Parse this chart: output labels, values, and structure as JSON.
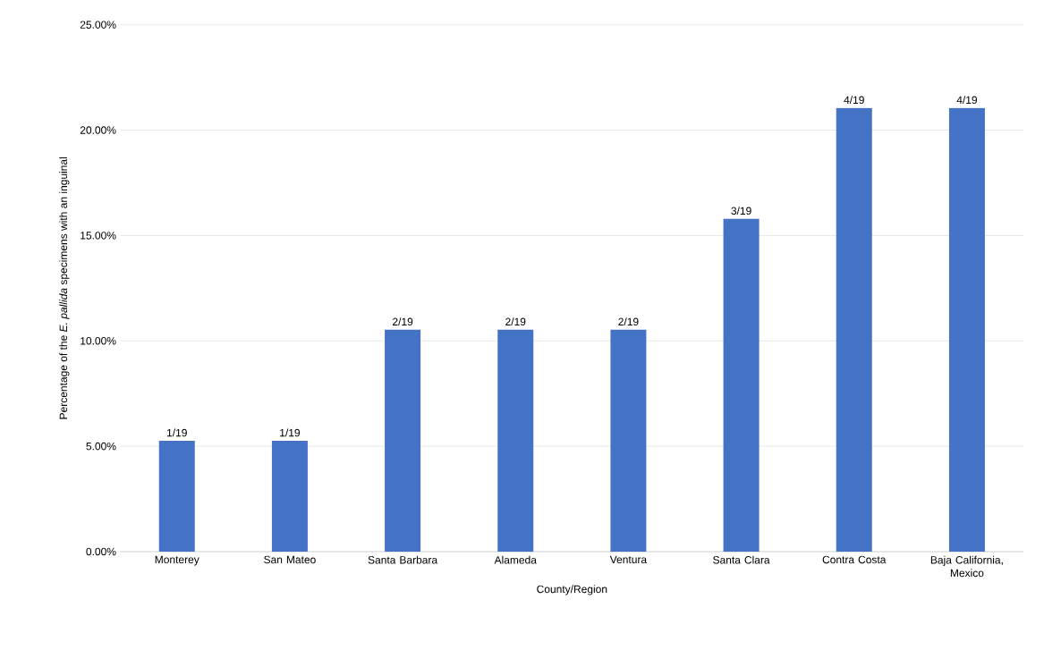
{
  "chart_data": {
    "type": "bar",
    "xlabel": "County/Region",
    "ylabel": "Percentage of the *E. pallida* specimens with an inguinal",
    "categories": [
      "Monterey",
      "San Mateo",
      "Santa Barbara",
      "Alameda",
      "Ventura",
      "Santa Clara",
      "Contra Costa",
      "Baja California, Mexico"
    ],
    "values": [
      5.26,
      5.26,
      10.53,
      10.53,
      10.53,
      15.79,
      21.05,
      21.05
    ],
    "value_labels": [
      "1/19",
      "1/19",
      "2/19",
      "2/19",
      "2/19",
      "3/19",
      "4/19",
      "4/19"
    ],
    "color": "#4472c4",
    "ylim": [
      0,
      25
    ],
    "yticks": [
      {
        "value": 0,
        "label": "0.00%"
      },
      {
        "value": 5,
        "label": "5.00%"
      },
      {
        "value": 10,
        "label": "10.00%"
      },
      {
        "value": 15,
        "label": "15.00%"
      },
      {
        "value": 20,
        "label": "20.00%"
      },
      {
        "value": 25,
        "label": "25.00%"
      }
    ],
    "grid": "y"
  }
}
